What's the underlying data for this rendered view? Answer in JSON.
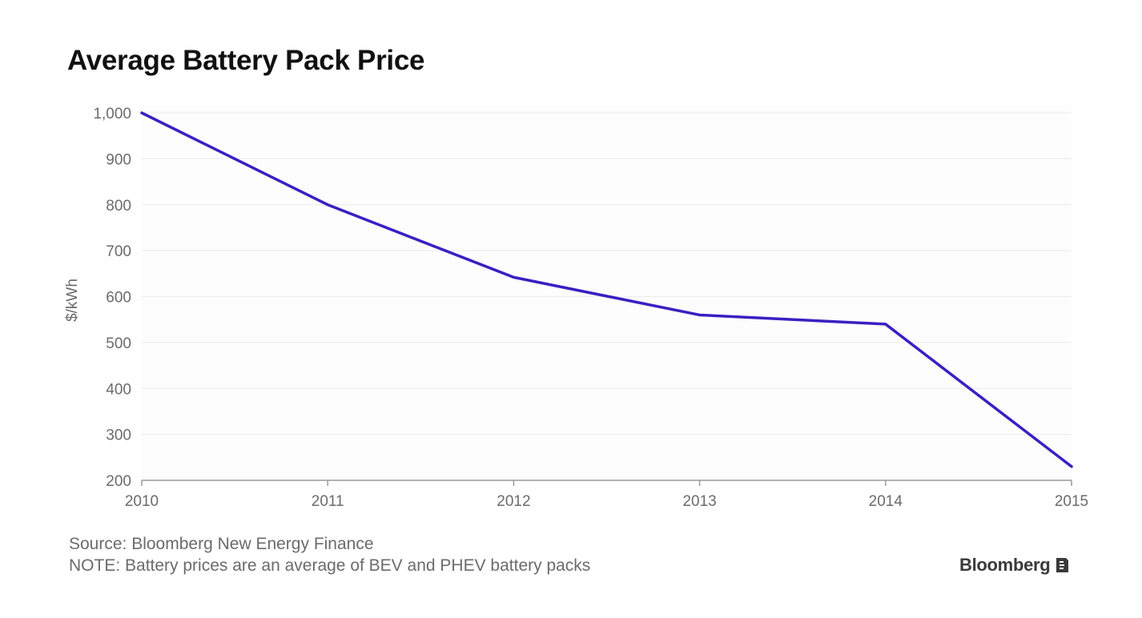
{
  "chart_data": {
    "type": "line",
    "title": "Average Battery Pack Price",
    "ylabel": "$/kWh",
    "xlabel": "",
    "x": [
      2010,
      2011,
      2012,
      2013,
      2014,
      2015
    ],
    "x_tick_labels": [
      "2010",
      "2011",
      "2012",
      "2013",
      "2014",
      "2015"
    ],
    "y_ticks": [
      200,
      300,
      400,
      500,
      600,
      700,
      800,
      900,
      1000
    ],
    "y_tick_labels": [
      "200",
      "300",
      "400",
      "500",
      "600",
      "700",
      "800",
      "900",
      "1,000"
    ],
    "ylim": [
      200,
      1000
    ],
    "xlim": [
      2010,
      2015
    ],
    "grid": "horizontal",
    "series": [
      {
        "values": [
          1000,
          800,
          642,
          560,
          540,
          230
        ]
      }
    ],
    "colors": {
      "line": "#3b1fc2",
      "grid": "#eeeeee",
      "axis": "#999999",
      "tick_text": "#6b6b6b",
      "plot_background": "#fdfdfd"
    }
  },
  "footer": {
    "source": "Source: Bloomberg New Energy Finance",
    "note": "NOTE: Battery prices are an average of BEV and PHEV battery packs"
  },
  "brand": {
    "name": "Bloomberg",
    "icon": "bloomberg-logo-icon"
  }
}
